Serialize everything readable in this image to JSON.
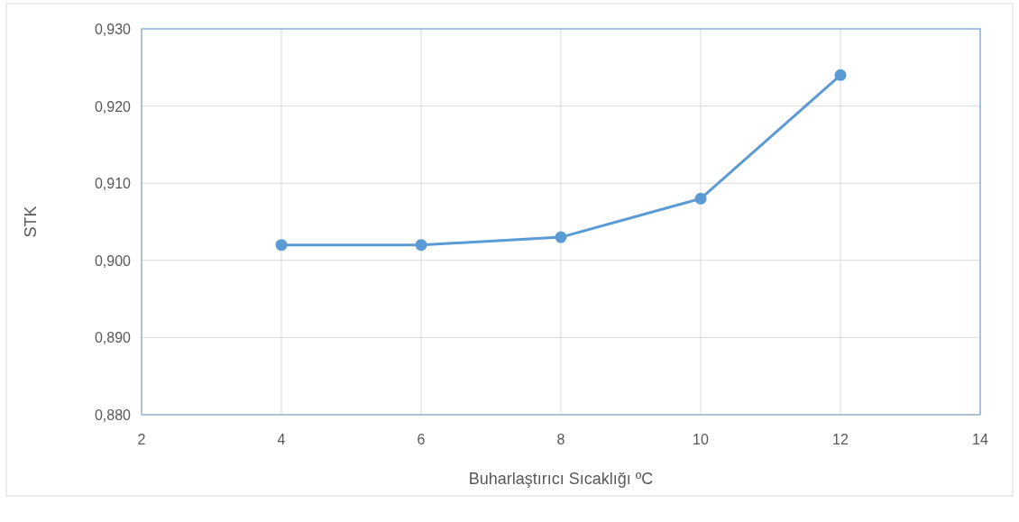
{
  "chart_data": {
    "type": "line",
    "xlabel": "Buharlaştırıcı Sıcaklığı ºC",
    "ylabel": "STK",
    "x": [
      4,
      6,
      8,
      10,
      12
    ],
    "series": [
      {
        "color": "#5b9bd5",
        "values": [
          0.902,
          0.902,
          0.903,
          0.908,
          0.924
        ]
      }
    ],
    "xlim": [
      2,
      14
    ],
    "xticks": [
      2,
      4,
      6,
      8,
      10,
      12,
      14
    ],
    "ylim": [
      0.88,
      0.93
    ],
    "yticks": [
      {
        "value": 0.88,
        "label": "0,880"
      },
      {
        "value": 0.89,
        "label": "0,890"
      },
      {
        "value": 0.9,
        "label": "0,900"
      },
      {
        "value": 0.91,
        "label": "0,910"
      },
      {
        "value": 0.92,
        "label": "0,920"
      },
      {
        "value": 0.93,
        "label": "0,930"
      }
    ],
    "grid": true,
    "marker": "circle",
    "line_style": "solid"
  }
}
